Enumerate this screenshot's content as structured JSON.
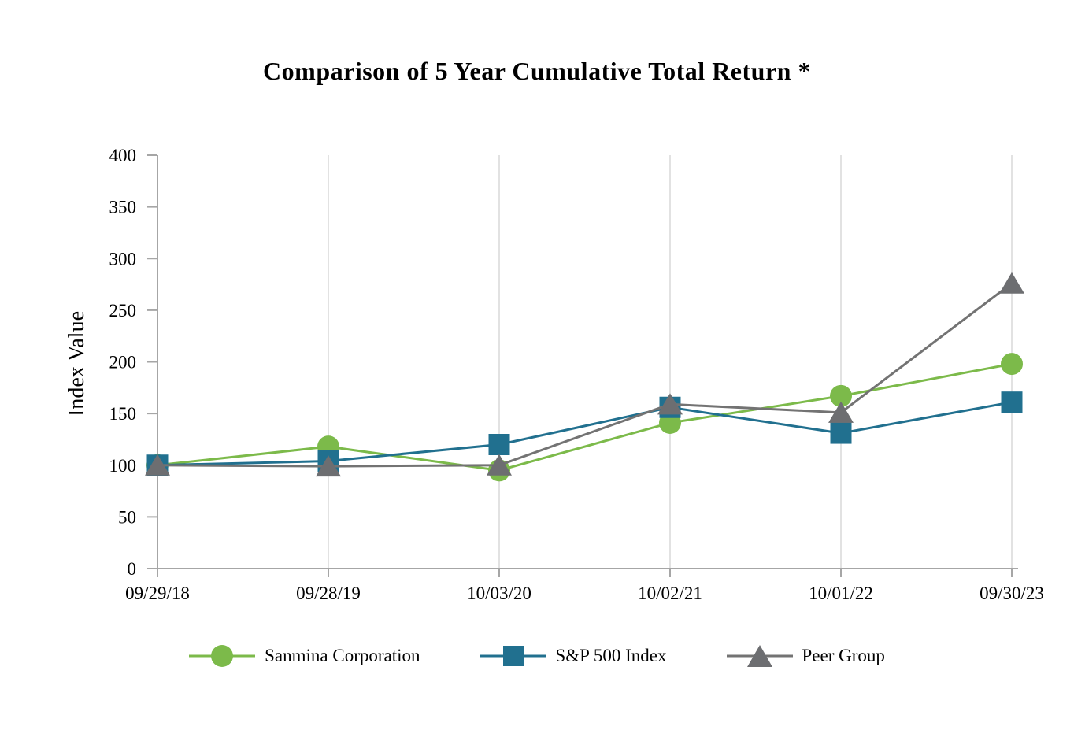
{
  "chart_data": {
    "type": "line",
    "title": "Comparison of 5 Year Cumulative Total Return *",
    "ylabel": "Index Value",
    "ylim": [
      0,
      400
    ],
    "yticks": [
      0,
      50,
      100,
      150,
      200,
      250,
      300,
      350,
      400
    ],
    "categories": [
      "09/29/18",
      "09/28/19",
      "10/03/20",
      "10/02/21",
      "10/01/22",
      "09/30/23"
    ],
    "series": [
      {
        "name": "Sanmina Corporation",
        "marker": "circle",
        "color": "#7CBA4A",
        "values": [
          100,
          118,
          95,
          141,
          167,
          198
        ]
      },
      {
        "name": "S&P 500 Index",
        "marker": "square",
        "color": "#21708F",
        "values": [
          100,
          104,
          120,
          156,
          131,
          161
        ]
      },
      {
        "name": "Peer Group",
        "marker": "triangle",
        "color": "#737373",
        "marker_color": "#6D6E71",
        "values": [
          100,
          99,
          100,
          159,
          151,
          276
        ]
      }
    ],
    "legend_position": "bottom",
    "grid": "vertical-only",
    "colors": {
      "axis": "#A6A6A6",
      "gridline": "#D9D9D9",
      "tick_label": "#000000",
      "background": "#FFFFFF"
    }
  }
}
